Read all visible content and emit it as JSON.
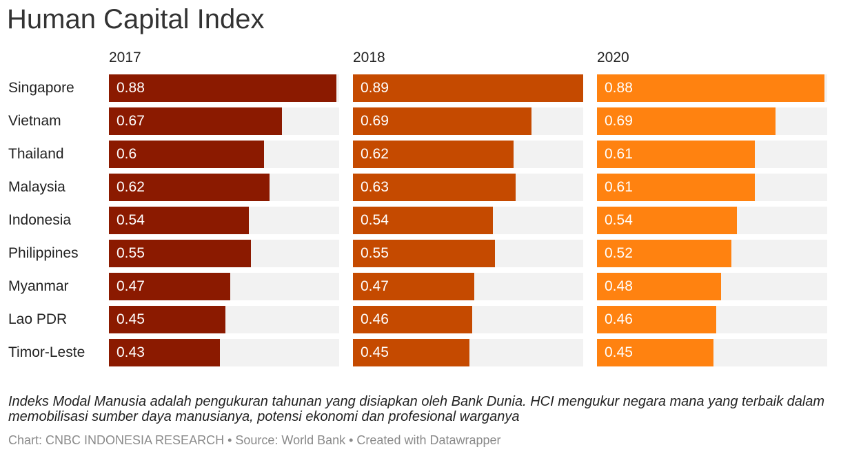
{
  "title": "Human Capital Index",
  "description": "Indeks Modal Manusia adalah pengukuran tahunan yang disiapkan oleh Bank Dunia. HCI mengukur negara mana yang terbaik dalam memobilisasi sumber daya manusianya, potensi ekonomi dan profesional warganya",
  "credit": "Chart: CNBC INDONESIA RESEARCH • Source: World Bank • Created with Datawrapper",
  "chart_data": {
    "type": "bar",
    "title": "Human Capital Index",
    "categories": [
      "Singapore",
      "Vietnam",
      "Thailand",
      "Malaysia",
      "Indonesia",
      "Philippines",
      "Myanmar",
      "Lao PDR",
      "Timor-Leste"
    ],
    "xlim": [
      0,
      0.89
    ],
    "grid": false,
    "series": [
      {
        "name": "2017",
        "color": "#8b1a00",
        "values": [
          0.88,
          0.67,
          0.6,
          0.62,
          0.54,
          0.55,
          0.47,
          0.45,
          0.43
        ]
      },
      {
        "name": "2018",
        "color": "#c54a00",
        "values": [
          0.89,
          0.69,
          0.62,
          0.63,
          0.54,
          0.55,
          0.47,
          0.46,
          0.45
        ]
      },
      {
        "name": "2020",
        "color": "#ff8210",
        "values": [
          0.88,
          0.69,
          0.61,
          0.61,
          0.54,
          0.52,
          0.48,
          0.46,
          0.45
        ]
      }
    ]
  }
}
